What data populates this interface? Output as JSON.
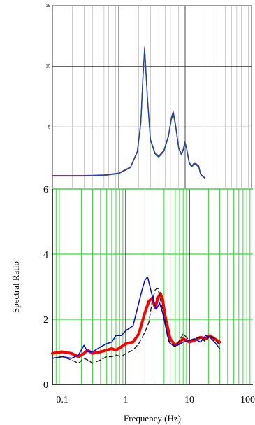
{
  "chart_data": [
    {
      "type": "line",
      "title": "",
      "xlabel": "",
      "ylabel": "",
      "x_scale": "log",
      "xlim": [
        0.1,
        100
      ],
      "ylim": [
        0,
        15
      ],
      "yticks": [
        "15",
        "10",
        "5"
      ],
      "grid": true,
      "series": [
        {
          "color": "#c0392b",
          "x": [
            0.1,
            0.3,
            0.6,
            1.0,
            1.5,
            1.9,
            2.15,
            2.3,
            2.45,
            2.7,
            3.0,
            3.5,
            4.0,
            4.8,
            5.6,
            6.2,
            6.6,
            7.2,
            8.0,
            8.8,
            9.4,
            9.9,
            10.5,
            11.5,
            12.5,
            13.5,
            14.5,
            15.2,
            16.0,
            17.0,
            18.0,
            19.0,
            20.0
          ],
          "y": [
            1.0,
            1.0,
            1.05,
            1.2,
            1.7,
            3.0,
            5.5,
            9.0,
            11.6,
            7.5,
            4.0,
            2.9,
            2.6,
            3.1,
            4.3,
            5.8,
            6.3,
            5.2,
            3.3,
            2.8,
            3.2,
            3.8,
            3.3,
            2.1,
            1.8,
            2.0,
            2.0,
            1.9,
            1.8,
            1.2,
            1.0,
            0.9,
            0.8
          ]
        },
        {
          "color": "#228b22",
          "x": [
            0.1,
            0.3,
            0.6,
            1.0,
            1.5,
            1.9,
            2.15,
            2.3,
            2.45,
            2.7,
            3.0,
            3.5,
            4.0,
            4.8,
            5.6,
            6.2,
            6.6,
            7.2,
            8.0,
            8.8,
            9.4,
            9.9,
            10.5,
            11.5,
            12.5,
            13.5,
            14.5,
            15.2,
            16.0,
            17.0,
            18.0,
            19.0,
            20.0
          ],
          "y": [
            0.95,
            0.95,
            1.0,
            1.15,
            1.65,
            2.9,
            5.3,
            8.8,
            11.3,
            7.3,
            3.9,
            2.8,
            2.5,
            3.0,
            4.2,
            5.6,
            6.1,
            5.0,
            3.2,
            2.7,
            3.1,
            3.7,
            3.2,
            2.0,
            1.7,
            1.9,
            1.9,
            1.8,
            1.7,
            1.1,
            0.95,
            0.85,
            0.75
          ]
        },
        {
          "color": "#1f3fbf",
          "x": [
            0.1,
            0.3,
            0.6,
            1.0,
            1.5,
            1.9,
            2.15,
            2.3,
            2.45,
            2.7,
            3.0,
            3.5,
            4.0,
            4.8,
            5.6,
            6.2,
            6.6,
            7.2,
            8.0,
            8.8,
            9.4,
            9.9,
            10.5,
            11.5,
            12.5,
            13.5,
            14.5,
            15.2,
            16.0,
            17.0,
            18.0,
            19.0,
            20.0
          ],
          "y": [
            0.97,
            0.97,
            1.02,
            1.17,
            1.67,
            2.95,
            5.4,
            8.9,
            11.45,
            7.4,
            3.95,
            2.85,
            2.55,
            3.05,
            4.25,
            5.7,
            6.2,
            5.1,
            3.25,
            2.75,
            3.15,
            3.75,
            3.25,
            2.05,
            1.75,
            1.95,
            1.95,
            1.85,
            1.75,
            1.15,
            0.97,
            0.87,
            0.77
          ]
        }
      ]
    },
    {
      "type": "line",
      "title": "",
      "xlabel": "Frequency (Hz)",
      "ylabel": "Spectral Ratio",
      "x_scale": "log",
      "xlim": [
        0.07,
        100
      ],
      "ylim": [
        0,
        6
      ],
      "xticks": [
        "0.1",
        "1",
        "10",
        "100"
      ],
      "yticks": [
        "0",
        "2",
        "4",
        "6"
      ],
      "grid": true,
      "series": [
        {
          "color": "#ff0000",
          "style": "solid-thick",
          "x": [
            0.07,
            0.1,
            0.14,
            0.18,
            0.22,
            0.25,
            0.3,
            0.4,
            0.5,
            0.6,
            0.7,
            0.85,
            1.0,
            1.3,
            1.6,
            2.0,
            2.3,
            2.6,
            2.9,
            3.2,
            3.5,
            3.8,
            4.2,
            5.0,
            6.0,
            7.0,
            8.0,
            10.0,
            12.0,
            15.0,
            18.0,
            21.0,
            25.0,
            30.0
          ],
          "y": [
            0.95,
            1.0,
            0.95,
            0.85,
            0.95,
            1.05,
            0.95,
            1.0,
            1.05,
            1.1,
            1.05,
            1.15,
            1.25,
            1.3,
            1.55,
            2.2,
            2.55,
            2.65,
            2.35,
            2.65,
            2.8,
            2.6,
            2.05,
            1.4,
            1.2,
            1.3,
            1.4,
            1.3,
            1.35,
            1.45,
            1.4,
            1.5,
            1.4,
            1.3
          ]
        },
        {
          "color": "#0000ee",
          "style": "solid",
          "x": [
            0.07,
            0.1,
            0.14,
            0.18,
            0.22,
            0.25,
            0.3,
            0.4,
            0.5,
            0.6,
            0.7,
            0.85,
            1.0,
            1.3,
            1.6,
            1.8,
            2.0,
            2.2,
            2.4,
            2.7,
            3.0,
            3.4,
            3.8,
            4.2,
            4.8,
            5.5,
            6.5,
            8.0,
            10.0,
            12.0,
            15.0,
            18.0,
            21.0,
            25.0,
            30.0
          ],
          "y": [
            0.8,
            0.85,
            0.8,
            0.9,
            1.2,
            1.0,
            1.0,
            1.15,
            1.25,
            1.3,
            1.5,
            1.5,
            1.65,
            1.8,
            2.5,
            2.9,
            3.2,
            3.3,
            3.0,
            2.6,
            2.3,
            2.5,
            2.2,
            1.8,
            1.3,
            1.2,
            1.2,
            1.3,
            1.35,
            1.4,
            1.3,
            1.5,
            1.45,
            1.3,
            1.1
          ]
        },
        {
          "color": "#111111",
          "style": "dashed",
          "x": [
            0.07,
            0.1,
            0.14,
            0.18,
            0.22,
            0.25,
            0.3,
            0.4,
            0.5,
            0.6,
            0.7,
            0.85,
            1.0,
            1.3,
            1.6,
            2.0,
            2.3,
            2.6,
            2.9,
            3.2,
            3.5,
            4.0,
            4.5,
            5.0,
            6.0,
            7.0,
            8.0,
            10.0,
            12.0,
            15.0,
            18.0,
            21.0,
            25.0,
            30.0
          ],
          "y": [
            0.8,
            0.85,
            0.75,
            0.65,
            0.8,
            0.75,
            0.65,
            0.75,
            0.85,
            0.85,
            0.9,
            0.85,
            0.95,
            1.05,
            1.25,
            1.6,
            1.9,
            2.55,
            2.9,
            2.95,
            2.6,
            2.1,
            1.5,
            1.25,
            1.15,
            1.35,
            1.55,
            1.35,
            1.4,
            1.45,
            1.3,
            1.5,
            1.4,
            1.2
          ]
        }
      ]
    }
  ]
}
